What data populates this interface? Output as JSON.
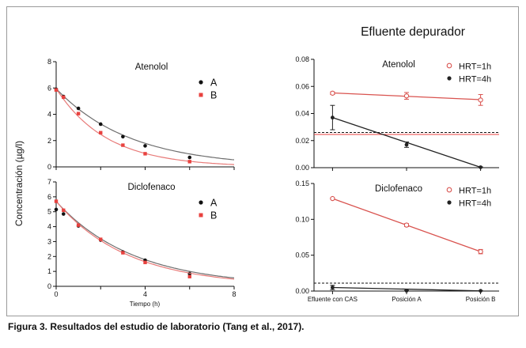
{
  "caption": "Figura 3. Resultados del estudio de laboratorio (Tang et al., 2017).",
  "shared": {
    "ylabel": "Concentración (µg/l)",
    "xlabel": "Tiempo (h)",
    "right_title": "Efluente depurador"
  },
  "colors": {
    "A": "#111111",
    "B": "#e8423f",
    "fitA": "#6e6e6e",
    "fitB": "#e87a78",
    "hrt1": "#d9534f",
    "hrt4": "#222222"
  },
  "chart_data": [
    {
      "id": "atenolol-time",
      "type": "scatter",
      "title": "Atenolol",
      "xlim": [
        0,
        8
      ],
      "ylim": [
        0,
        8
      ],
      "xticks": [
        0,
        2,
        4,
        6,
        8
      ],
      "yticks": [
        0,
        2,
        4,
        6,
        8
      ],
      "xticklabels_shown": false,
      "legend": "top-right",
      "series": [
        {
          "name": "A",
          "color": "#111111",
          "marker": "circle",
          "points": [
            [
              0,
              5.9
            ],
            [
              0.33,
              5.35
            ],
            [
              1,
              4.45
            ],
            [
              2,
              3.25
            ],
            [
              3,
              2.3
            ],
            [
              4,
              1.6
            ],
            [
              6,
              0.72
            ]
          ],
          "fit": {
            "y0": 5.95,
            "k": 0.3
          }
        },
        {
          "name": "B",
          "color": "#e8423f",
          "marker": "square",
          "points": [
            [
              0,
              5.85
            ],
            [
              0.33,
              5.3
            ],
            [
              1,
              4.05
            ],
            [
              2,
              2.6
            ],
            [
              3,
              1.65
            ],
            [
              4,
              1.0
            ],
            [
              6,
              0.4
            ]
          ],
          "fit": {
            "y0": 5.95,
            "k": 0.44
          }
        }
      ]
    },
    {
      "id": "diclofenaco-time",
      "type": "scatter",
      "title": "Diclofenaco",
      "xlim": [
        0,
        8
      ],
      "ylim": [
        0,
        7
      ],
      "xticks": [
        0,
        2,
        4,
        6,
        8
      ],
      "yticks": [
        0,
        1,
        2,
        3,
        4,
        5,
        6,
        7
      ],
      "xticklabels": [
        "0",
        "",
        "4",
        "",
        "8"
      ],
      "legend": "top-right",
      "series": [
        {
          "name": "A",
          "color": "#111111",
          "marker": "circle",
          "points": [
            [
              0,
              5.15
            ],
            [
              0.33,
              4.85
            ],
            [
              1,
              4.05
            ],
            [
              2,
              3.1
            ],
            [
              3,
              2.3
            ],
            [
              4,
              1.75
            ],
            [
              6,
              0.85
            ]
          ],
          "fit": {
            "y0": 5.7,
            "k": 0.29
          }
        },
        {
          "name": "B",
          "color": "#e8423f",
          "marker": "square",
          "points": [
            [
              0,
              5.7
            ],
            [
              0.33,
              5.1
            ],
            [
              1,
              4.1
            ],
            [
              2,
              3.15
            ],
            [
              3,
              2.25
            ],
            [
              4,
              1.6
            ],
            [
              6,
              0.65
            ]
          ],
          "fit": {
            "y0": 5.7,
            "k": 0.31
          }
        }
      ]
    },
    {
      "id": "atenolol-effluent",
      "type": "line",
      "title": "Atenolol",
      "ylim": [
        0,
        0.08
      ],
      "yticks": [
        0,
        0.02,
        0.04,
        0.06,
        0.08
      ],
      "yticklabels": [
        "0.00",
        "0.02",
        "0.04",
        "0.06",
        "0.08"
      ],
      "categories": [
        "Efluente con CAS",
        "Posición A",
        "Posición B"
      ],
      "xticklabels_shown": false,
      "legend": "top-right",
      "reference_lines": [
        {
          "value": 0.026,
          "style": "dotted",
          "color": "#111111"
        },
        {
          "value": 0.0245,
          "style": "solid",
          "color": "#e8423f"
        }
      ],
      "series": [
        {
          "name": "HRT=1h",
          "color": "#d9534f",
          "marker": "open-circle",
          "values": [
            0.055,
            0.053,
            0.05
          ],
          "errors": [
            0.001,
            0.0025,
            0.004
          ],
          "fit": [
            0.0552,
            0.0502
          ]
        },
        {
          "name": "HRT=4h",
          "color": "#222222",
          "marker": "filled-circle",
          "values": [
            0.037,
            0.017,
            0.0003
          ],
          "errors": [
            0.009,
            0.002,
            0.0003
          ],
          "fit": [
            0.037,
            0.0003
          ]
        }
      ]
    },
    {
      "id": "diclofenaco-effluent",
      "type": "line",
      "title": "Diclofenaco",
      "ylim": [
        0,
        0.15
      ],
      "yticks": [
        0,
        0.05,
        0.1,
        0.15
      ],
      "yticklabels": [
        "0.00",
        "0.05",
        "0.10",
        "0.15"
      ],
      "categories": [
        "Efluente con CAS",
        "Posición A",
        "Posición B"
      ],
      "legend": "top-right",
      "reference_lines": [
        {
          "value": 0.011,
          "style": "dotted",
          "color": "#111111"
        }
      ],
      "series": [
        {
          "name": "HRT=1h",
          "color": "#d9534f",
          "marker": "open-circle",
          "values": [
            0.129,
            0.092,
            0.055
          ],
          "errors": [
            0.001,
            0.002,
            0.003
          ],
          "fit": [
            0.129,
            0.055
          ]
        },
        {
          "name": "HRT=4h",
          "color": "#222222",
          "marker": "filled-circle",
          "values": [
            0.005,
            0.0005,
            0.0003
          ],
          "errors": [
            0.003,
            0.0005,
            0.0003
          ],
          "fit": [
            0.005,
            0.0003
          ]
        }
      ]
    }
  ]
}
